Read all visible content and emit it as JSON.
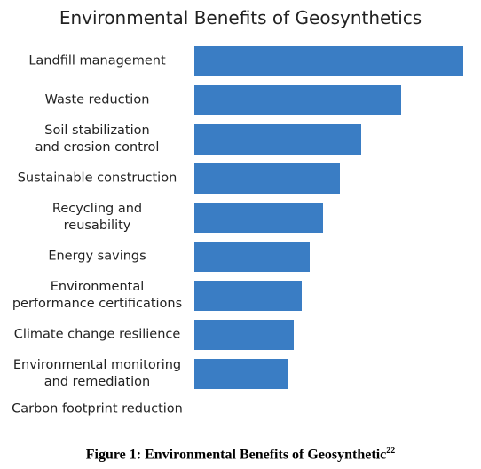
{
  "chart_data": {
    "type": "barh",
    "title": "Environmental Benefits of Geosynthetics",
    "categories": [
      "Landfill management",
      "Waste reduction",
      "Soil stabilization\nand erosion control",
      "Sustainable construction",
      "Recycling and\nreusability",
      "Energy savings",
      "Environmental\nperformance certifications",
      "Climate change resilience",
      "Environmental monitoring\nand remediation",
      "Carbon footprint reduction"
    ],
    "values": [
      100,
      77,
      62,
      54,
      48,
      43,
      40,
      37,
      35,
      0
    ],
    "color": "#3a7dc4",
    "xlim": [
      0,
      100
    ]
  },
  "caption": {
    "text": "Figure 1: Environmental Benefits of Geosynthetic",
    "superscript": "22"
  }
}
